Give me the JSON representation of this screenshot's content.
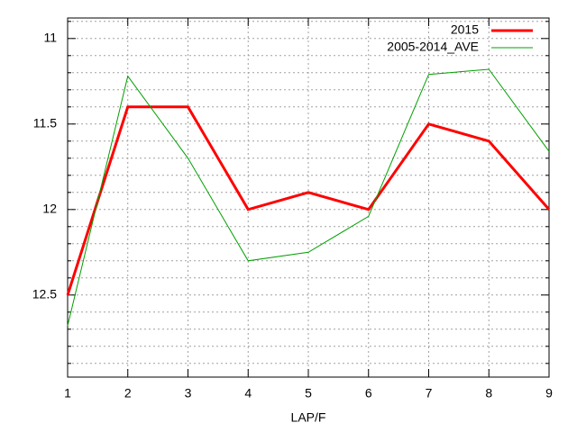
{
  "chart_data": {
    "type": "line",
    "x_label": "LAP/F",
    "x": [
      1,
      2,
      3,
      4,
      5,
      6,
      7,
      8,
      9
    ],
    "xlim": [
      1,
      9
    ],
    "xticks": [
      1,
      2,
      3,
      4,
      5,
      6,
      7,
      8,
      9
    ],
    "ylim": [
      12.98,
      10.88
    ],
    "y_reversed": true,
    "yticks": [
      11,
      11.5,
      12,
      12.5
    ],
    "yminorticks": [
      10.9,
      11.1,
      11.2,
      11.3,
      11.4,
      11.6,
      11.7,
      11.8,
      11.9,
      12.1,
      12.2,
      12.3,
      12.4,
      12.6,
      12.7,
      12.8,
      12.9
    ],
    "grid": true,
    "legend": "top-right",
    "series": [
      {
        "name": "2015",
        "color": "#ff0000",
        "width": 3,
        "values": [
          12.5,
          11.4,
          11.4,
          12.0,
          11.9,
          12.0,
          11.5,
          11.6,
          12.0
        ]
      },
      {
        "name": "2005-2014_AVE",
        "color": "#00a000",
        "width": 1,
        "values": [
          12.68,
          11.22,
          11.7,
          12.3,
          12.25,
          12.04,
          11.21,
          11.18,
          11.66
        ]
      }
    ]
  }
}
